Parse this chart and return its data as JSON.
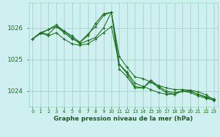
{
  "x": [
    0,
    1,
    2,
    3,
    4,
    5,
    6,
    7,
    8,
    9,
    10,
    11,
    12,
    13,
    14,
    15,
    16,
    17,
    18,
    19,
    20,
    21,
    22,
    23
  ],
  "series": [
    [
      1025.65,
      1025.85,
      1025.75,
      1025.85,
      1025.65,
      1025.5,
      1025.45,
      1025.5,
      1025.65,
      1025.85,
      1026.05,
      1024.85,
      1024.6,
      1024.25,
      1024.15,
      1024.05,
      1023.95,
      1023.9,
      1023.9,
      1024.0,
      1024.0,
      1023.9,
      1023.82,
      1023.75
    ],
    [
      1025.65,
      1025.85,
      1025.8,
      1026.05,
      1025.85,
      1025.65,
      1025.55,
      1025.75,
      1026.15,
      1026.45,
      1026.5,
      1024.7,
      1024.45,
      1024.1,
      1024.1,
      1024.3,
      1024.1,
      1023.95,
      1023.9,
      1024.0,
      1023.95,
      1023.85,
      1023.77,
      1023.72
    ],
    [
      1025.65,
      1025.82,
      1025.95,
      1026.05,
      1025.9,
      1025.75,
      1025.55,
      1025.8,
      1026.05,
      1026.4,
      1026.5,
      1024.85,
      1024.55,
      1024.15,
      1024.1,
      1024.35,
      1024.15,
      1024.0,
      1023.95,
      1024.0,
      1024.0,
      1023.9,
      1023.8,
      1023.7
    ],
    [
      1025.65,
      1025.85,
      1025.95,
      1026.1,
      1025.9,
      1025.7,
      1025.5,
      1025.6,
      1025.7,
      1026.0,
      1026.5,
      1025.1,
      1024.75,
      1024.45,
      1024.4,
      1024.28,
      1024.18,
      1024.1,
      1024.05,
      1024.05,
      1024.03,
      1023.98,
      1023.88,
      1023.73
    ]
  ],
  "line_color": "#1a6e1a",
  "bg_color": "#cff0f0",
  "grid_color": "#99ccbb",
  "xlabel": "Graphe pression niveau de la mer (hPa)",
  "xlabel_color": "#1a5c1a",
  "tick_color": "#1a6e1a",
  "axis_label_color": "#1a5c1a",
  "yticks": [
    1024,
    1025,
    1026
  ],
  "ylim": [
    1023.5,
    1026.8
  ],
  "xlim": [
    -0.5,
    23.5
  ],
  "figsize": [
    3.2,
    2.0
  ],
  "dpi": 100
}
